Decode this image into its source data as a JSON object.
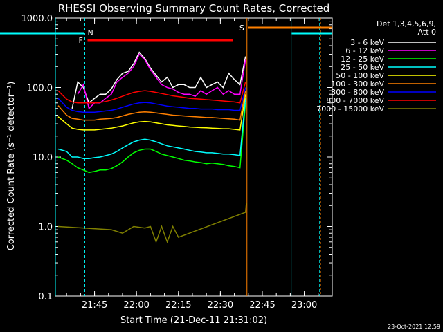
{
  "chart_data": {
    "type": "line",
    "title": "RHESSI Observing Summary Count Rates, Corrected",
    "xlabel": "Start Time (21-Dec-11 21:31:02)",
    "ylabel": "Corrected Count Rate (s⁻¹ detector⁻¹)",
    "yscale": "log",
    "xlim_minutes": [
      0,
      99
    ],
    "ylim": [
      0.1,
      1000
    ],
    "x_ticks": [
      "21:45",
      "22:00",
      "22:15",
      "22:30",
      "22:45",
      "23:00"
    ],
    "y_ticks": [
      "0.1",
      "1.0",
      "10.0",
      "100.0",
      "1000.0"
    ],
    "legend_title": [
      "Det 1,3,4,5,6,9,",
      "Att 0"
    ],
    "legend_position": "right",
    "timestamp": "23-Oct-2021 12:59",
    "flags": [
      {
        "label": "N",
        "color": "#00ffff"
      },
      {
        "label": "F",
        "color": "#ff0000"
      },
      {
        "label": "S",
        "color": "#ff8000"
      }
    ],
    "series": [
      {
        "name": "3 - 6 keV",
        "color": "#ffffff",
        "x": [
          6,
          8,
          10,
          12,
          14,
          16,
          18,
          20,
          22,
          24,
          26,
          28,
          30,
          32,
          34,
          36,
          38,
          40,
          42,
          44,
          46,
          48,
          50,
          52,
          54,
          56,
          58,
          60,
          62,
          64,
          66,
          68
        ],
        "values": [
          50,
          120,
          100,
          60,
          70,
          80,
          80,
          95,
          130,
          160,
          170,
          220,
          320,
          260,
          190,
          150,
          120,
          140,
          100,
          110,
          110,
          100,
          100,
          140,
          100,
          110,
          120,
          100,
          160,
          130,
          110,
          280
        ]
      },
      {
        "name": "6 - 12 keV",
        "color": "#ff00ff",
        "x": [
          8,
          10,
          12,
          14,
          16,
          18,
          20,
          22,
          24,
          26,
          28,
          30,
          32,
          34,
          36,
          38,
          40,
          42,
          44,
          46,
          48,
          50,
          52,
          54,
          56,
          58,
          60,
          62,
          64,
          66,
          68
        ],
        "values": [
          80,
          110,
          50,
          60,
          60,
          70,
          80,
          120,
          140,
          160,
          200,
          300,
          250,
          180,
          140,
          110,
          100,
          95,
          85,
          80,
          80,
          75,
          90,
          80,
          90,
          100,
          80,
          90,
          80,
          80,
          250
        ]
      },
      {
        "name": "12 - 25 keV",
        "color": "#00ff00",
        "x": [
          1,
          4,
          6,
          8,
          10,
          12,
          14,
          16,
          18,
          20,
          22,
          24,
          26,
          28,
          30,
          32,
          34,
          36,
          38,
          40,
          42,
          44,
          46,
          48,
          50,
          52,
          54,
          56,
          58,
          60,
          62,
          64,
          66,
          68
        ],
        "values": [
          10,
          9,
          8,
          7,
          6.5,
          6,
          6.2,
          6.5,
          6.5,
          6.8,
          7.5,
          8.5,
          10,
          11.5,
          12.5,
          13,
          13,
          12,
          11,
          10.5,
          10,
          9.5,
          9,
          8.8,
          8.5,
          8.3,
          8,
          8.2,
          8,
          7.8,
          7.5,
          7.3,
          7,
          60
        ]
      },
      {
        "name": "25 - 50 keV",
        "color": "#00ffff",
        "x": [
          1,
          4,
          6,
          8,
          10,
          12,
          14,
          16,
          18,
          20,
          22,
          24,
          26,
          28,
          30,
          32,
          34,
          36,
          38,
          40,
          42,
          44,
          46,
          48,
          50,
          52,
          54,
          56,
          58,
          60,
          62,
          64,
          66,
          68
        ],
        "values": [
          13,
          12,
          10,
          10,
          9.5,
          9.5,
          9.8,
          10,
          10.5,
          11,
          12,
          13.5,
          15,
          16.5,
          17.5,
          18,
          17.5,
          16.5,
          15.5,
          14.5,
          14,
          13.5,
          13,
          12.5,
          12,
          11.8,
          11.5,
          11.5,
          11.3,
          11,
          11,
          10.8,
          10.5,
          70
        ]
      },
      {
        "name": "50 - 100 keV",
        "color": "#ffff00",
        "x": [
          1,
          4,
          6,
          8,
          10,
          12,
          14,
          16,
          18,
          20,
          22,
          24,
          26,
          28,
          30,
          32,
          34,
          36,
          38,
          40,
          42,
          44,
          46,
          48,
          50,
          52,
          54,
          56,
          58,
          60,
          62,
          64,
          66,
          68
        ],
        "values": [
          38,
          30,
          26,
          25,
          24.5,
          24.5,
          24.5,
          25,
          25.5,
          26,
          27,
          28,
          29.5,
          31,
          32,
          32.5,
          32,
          31,
          30,
          29,
          28.5,
          28,
          27.5,
          27,
          26.8,
          26.5,
          26.3,
          26,
          25.8,
          25.5,
          25.5,
          25,
          24.5,
          80
        ]
      },
      {
        "name": "100 - 300 keV",
        "color": "#ff8000",
        "x": [
          1,
          4,
          6,
          8,
          10,
          12,
          14,
          16,
          18,
          20,
          22,
          24,
          26,
          28,
          30,
          32,
          34,
          36,
          38,
          40,
          42,
          44,
          46,
          48,
          50,
          52,
          54,
          56,
          58,
          60,
          62,
          64,
          66,
          68
        ],
        "values": [
          55,
          40,
          36,
          35,
          34,
          34,
          34,
          35,
          35.5,
          36,
          37,
          39,
          41,
          42.5,
          44,
          44.5,
          44,
          43,
          42,
          41,
          40,
          39.5,
          39,
          38.5,
          38,
          37.5,
          37,
          37,
          36.5,
          36,
          35.5,
          35,
          34,
          90
        ]
      },
      {
        "name": "300 - 800 keV",
        "color": "#0000ff",
        "x": [
          1,
          4,
          6,
          8,
          10,
          12,
          14,
          16,
          18,
          20,
          22,
          24,
          26,
          28,
          30,
          32,
          34,
          36,
          38,
          40,
          42,
          44,
          46,
          48,
          50,
          52,
          54,
          56,
          58,
          60,
          62,
          64,
          66,
          68
        ],
        "values": [
          70,
          52,
          47,
          45,
          44,
          44,
          44,
          45,
          46,
          47,
          49,
          52,
          55,
          58,
          60,
          61,
          60,
          58,
          56,
          54,
          53,
          52,
          51,
          50,
          50,
          49,
          49,
          49,
          48,
          48,
          48,
          47,
          47,
          100
        ]
      },
      {
        "name": "800 - 7000 keV",
        "color": "#ff0000",
        "x": [
          1,
          4,
          6,
          8,
          10,
          12,
          14,
          16,
          18,
          20,
          22,
          24,
          26,
          28,
          30,
          32,
          34,
          36,
          38,
          40,
          42,
          44,
          46,
          48,
          50,
          52,
          54,
          56,
          58,
          60,
          62,
          64,
          66,
          68
        ],
        "values": [
          90,
          68,
          62,
          60,
          60,
          60,
          60,
          61,
          63,
          66,
          70,
          75,
          80,
          85,
          88,
          90,
          88,
          85,
          82,
          79,
          76,
          74,
          72,
          70,
          69,
          68,
          67,
          66,
          65,
          64,
          63,
          62,
          60,
          120
        ]
      },
      {
        "name": "7000 - 15000 keV",
        "color": "#808000",
        "x": [
          1,
          20,
          24,
          28,
          32,
          34,
          36,
          38,
          40,
          42,
          44,
          68,
          68.3
        ],
        "values": [
          1.0,
          0.9,
          0.8,
          1.0,
          0.95,
          1.0,
          0.6,
          1.0,
          0.6,
          1.0,
          0.7,
          1.6,
          2.2
        ]
      }
    ]
  }
}
